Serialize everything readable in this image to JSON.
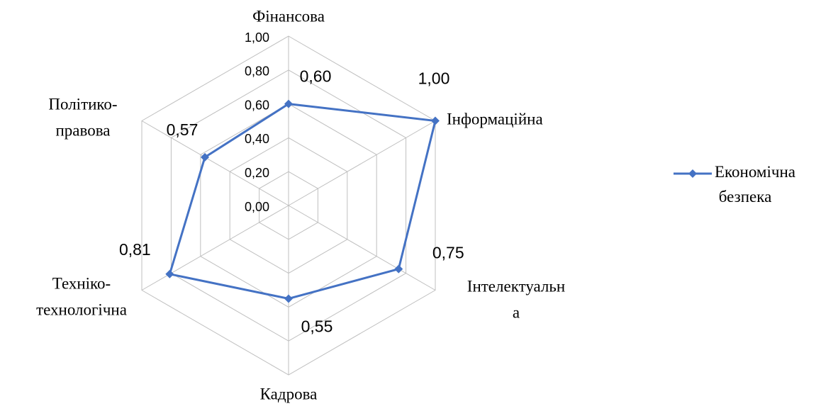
{
  "chart_data": {
    "type": "radar",
    "categories": [
      "Фінансова",
      "Інформаційна",
      "Інтелектуальна",
      "Кадрова",
      "Техніко-технологічна",
      "Політико-правова"
    ],
    "series": [
      {
        "name": "Економічна безпека",
        "color": "#4472c4",
        "values": [
          0.6,
          1.0,
          0.75,
          0.55,
          0.81,
          0.57
        ],
        "value_labels": [
          "0,60",
          "1,00",
          "0,75",
          "0,55",
          "0,81",
          "0,57"
        ]
      }
    ],
    "ylim": [
      0,
      1
    ],
    "yticks": [
      {
        "value": 0,
        "label": "0,00"
      },
      {
        "value": 0.2,
        "label": "0,20"
      },
      {
        "value": 0.4,
        "label": "0,40"
      },
      {
        "value": 0.6,
        "label": "0,60"
      },
      {
        "value": 0.8,
        "label": "0,80"
      },
      {
        "value": 1,
        "label": "1,00"
      }
    ],
    "grid": true,
    "legend": "right"
  }
}
